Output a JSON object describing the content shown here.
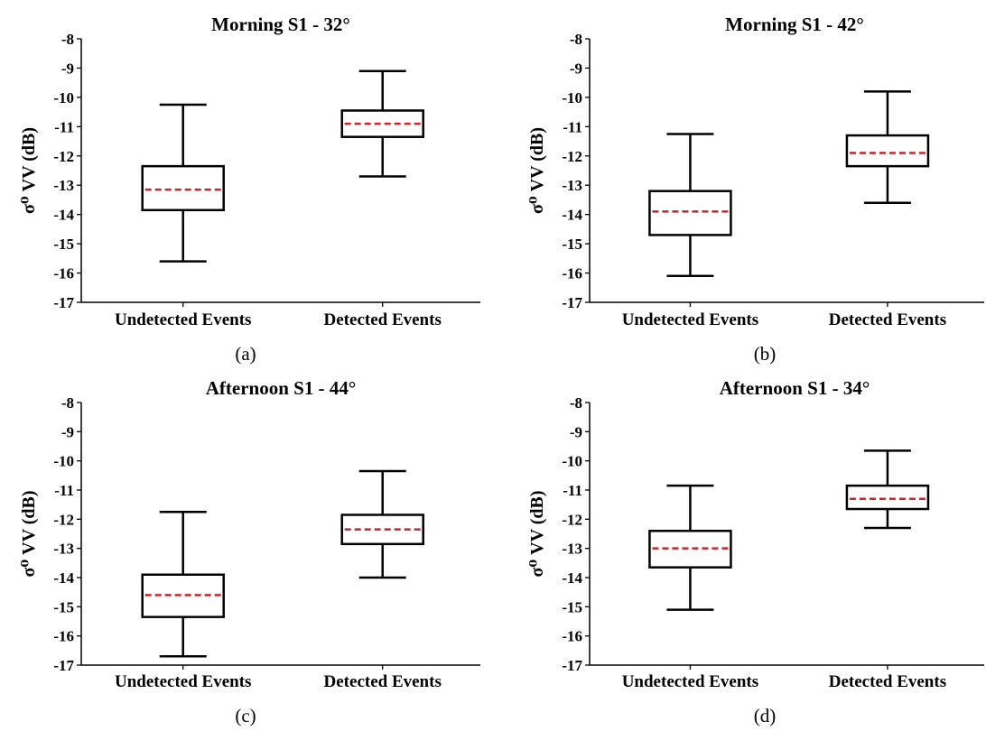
{
  "chart_data": [
    {
      "type": "boxplot",
      "panel_label": "(a)",
      "title": "Morning S1 - 32°",
      "ylabel": "σ⁰ VV (dB)",
      "ylim": [
        -17,
        -8
      ],
      "yticks": [
        "-8",
        "-9",
        "-10",
        "-11",
        "-12",
        "-13",
        "-14",
        "-15",
        "-16",
        "-17"
      ],
      "categories": [
        "Undetected Events",
        "Detected Events"
      ],
      "boxes": [
        {
          "whisker_low": -15.6,
          "q1": -13.85,
          "median": -13.15,
          "q3": -12.35,
          "whisker_high": -10.25
        },
        {
          "whisker_low": -12.7,
          "q1": -11.35,
          "median": -10.9,
          "q3": -10.45,
          "whisker_high": -9.1
        }
      ]
    },
    {
      "type": "boxplot",
      "panel_label": "(b)",
      "title": "Morning S1 - 42°",
      "ylabel": "σ⁰ VV (dB)",
      "ylim": [
        -17,
        -8
      ],
      "yticks": [
        "-8",
        "-9",
        "-10",
        "-11",
        "-12",
        "-13",
        "-14",
        "-15",
        "-16",
        "-17"
      ],
      "categories": [
        "Undetected Events",
        "Detected Events"
      ],
      "boxes": [
        {
          "whisker_low": -16.1,
          "q1": -14.7,
          "median": -13.9,
          "q3": -13.2,
          "whisker_high": -11.25
        },
        {
          "whisker_low": -13.6,
          "q1": -12.35,
          "median": -11.9,
          "q3": -11.3,
          "whisker_high": -9.8
        }
      ]
    },
    {
      "type": "boxplot",
      "panel_label": "(c)",
      "title": "Afternoon S1 - 44°",
      "ylabel": "σ⁰ VV (dB)",
      "ylim": [
        -17,
        -8
      ],
      "yticks": [
        "-8",
        "-9",
        "-10",
        "-11",
        "-12",
        "-13",
        "-14",
        "-15",
        "-16",
        "-17"
      ],
      "categories": [
        "Undetected Events",
        "Detected Events"
      ],
      "boxes": [
        {
          "whisker_low": -16.7,
          "q1": -15.35,
          "median": -14.6,
          "q3": -13.9,
          "whisker_high": -11.75
        },
        {
          "whisker_low": -14.0,
          "q1": -12.85,
          "median": -12.35,
          "q3": -11.85,
          "whisker_high": -10.35
        }
      ]
    },
    {
      "type": "boxplot",
      "panel_label": "(d)",
      "title": "Afternoon S1 - 34°",
      "ylabel": "σ⁰ VV (dB)",
      "ylim": [
        -17,
        -8
      ],
      "yticks": [
        "-8",
        "-9",
        "-10",
        "-11",
        "-12",
        "-13",
        "-14",
        "-15",
        "-16",
        "-17"
      ],
      "categories": [
        "Undetected Events",
        "Detected Events"
      ],
      "boxes": [
        {
          "whisker_low": -15.1,
          "q1": -13.65,
          "median": -13.0,
          "q3": -12.4,
          "whisker_high": -10.85
        },
        {
          "whisker_low": -12.3,
          "q1": -11.65,
          "median": -11.3,
          "q3": -10.85,
          "whisker_high": -9.65
        }
      ]
    }
  ],
  "colors": {
    "box": "#000000",
    "median": "#c0282d"
  }
}
